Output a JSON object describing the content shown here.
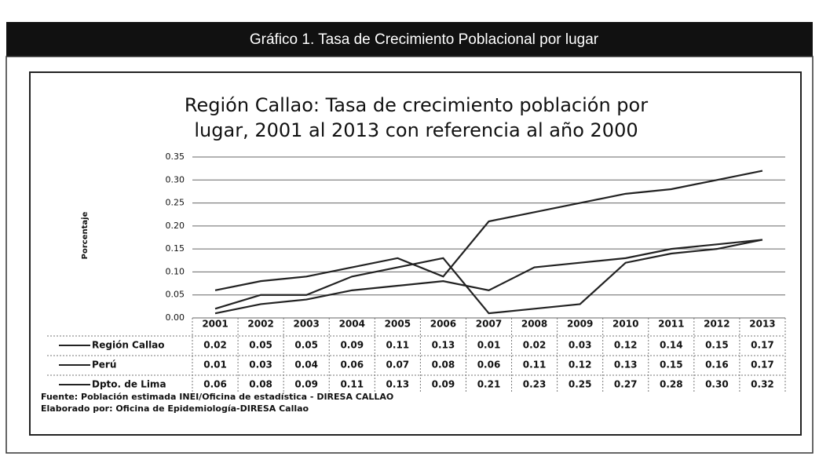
{
  "header": {
    "title": "Gráfico 1.  Tasa de Crecimiento Poblacional por lugar"
  },
  "chart_data": {
    "type": "line",
    "title": [
      "Región Callao: Tasa de crecimiento población por",
      "lugar,  2001 al 2013 con referencia al año 2000"
    ],
    "y_label": "Porcentaje",
    "categories": [
      "2001",
      "2002",
      "2003",
      "2004",
      "2005",
      "2006",
      "2007",
      "2008",
      "2009",
      "2010",
      "2011",
      "2012",
      "2013"
    ],
    "series": [
      {
        "name": "Región Callao",
        "color": "#222222",
        "values": [
          0.02,
          0.05,
          0.05,
          0.09,
          0.11,
          0.13,
          0.01,
          0.02,
          0.03,
          0.12,
          0.14,
          0.15,
          0.17
        ],
        "value_labels": [
          "0.02",
          "0.05",
          "0.05",
          "0.09",
          "0.11",
          "0.13",
          "0.01",
          "0.02",
          "0.03",
          "0.12",
          "0.14",
          "0.15",
          "0.17"
        ]
      },
      {
        "name": "Perú",
        "color": "#222222",
        "values": [
          0.01,
          0.03,
          0.04,
          0.06,
          0.07,
          0.08,
          0.06,
          0.11,
          0.12,
          0.13,
          0.15,
          0.16,
          0.17
        ],
        "value_labels": [
          "0.01",
          "0.03",
          "0.04",
          "0.06",
          "0.07",
          "0.08",
          "0.06",
          "0.11",
          "0.12",
          "0.13",
          "0.15",
          "0.16",
          "0.17"
        ]
      },
      {
        "name": "Dpto. de Lima",
        "color": "#222222",
        "values": [
          0.06,
          0.08,
          0.09,
          0.11,
          0.13,
          0.09,
          0.21,
          0.23,
          0.25,
          0.27,
          0.28,
          0.3,
          0.32
        ],
        "value_labels": [
          "0.06",
          "0.08",
          "0.09",
          "0.11",
          "0.13",
          "0.09",
          "0.21",
          "0.23",
          "0.25",
          "0.27",
          "0.28",
          "0.30",
          "0.32"
        ]
      }
    ],
    "ylim": [
      0,
      0.35
    ],
    "yticks": [
      {
        "value": 0,
        "label": "0.00"
      },
      0.05,
      {
        "value": 0.1,
        "label": "0.10"
      },
      0.15,
      {
        "value": 0.2,
        "label": "0.20"
      },
      0.25,
      {
        "value": 0.3,
        "label": "0.30"
      },
      0.35
    ],
    "grid": true
  },
  "footer": [
    "Fuente: Población estimada INEI/Oficina de estadística - DIRESA CALLAO",
    "Elaborado por: Oficina de Epidemiología-DIRESA Callao"
  ]
}
